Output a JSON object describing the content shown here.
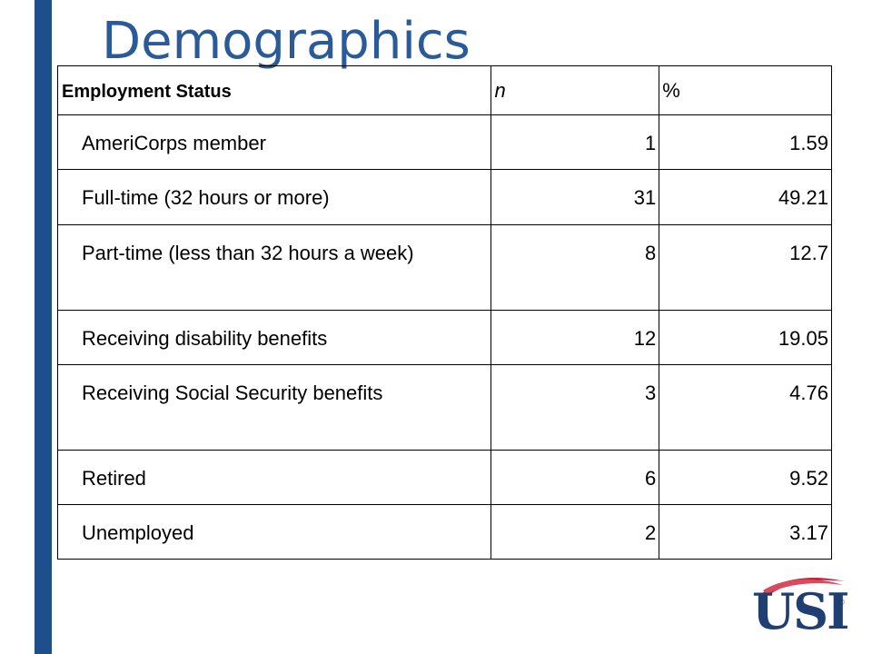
{
  "slide": {
    "title": "Demographics"
  },
  "table": {
    "headers": [
      "Employment Status",
      "n",
      "%"
    ],
    "rows": [
      {
        "label": "AmeriCorps member",
        "n": "1",
        "pct": "1.59"
      },
      {
        "label": "Full-time (32 hours or more)",
        "n": "31",
        "pct": "49.21"
      },
      {
        "label": "Part-time (less than 32 hours a week)",
        "n": "8",
        "pct": "12.7"
      },
      {
        "label": "Receiving disability benefits",
        "n": "12",
        "pct": "19.05"
      },
      {
        "label": "Receiving Social Security benefits",
        "n": "3",
        "pct": "4.76"
      },
      {
        "label": "Retired",
        "n": "6",
        "pct": "9.52"
      },
      {
        "label": "Unemployed",
        "n": "2",
        "pct": "3.17"
      }
    ]
  },
  "logo": {
    "text": "USI",
    "mark": "®",
    "colors": {
      "navy": "#1f3f73",
      "red": "#c8102e"
    }
  },
  "colors": {
    "accent_bar": "#1f4e8c",
    "title": "#2a5a97"
  }
}
